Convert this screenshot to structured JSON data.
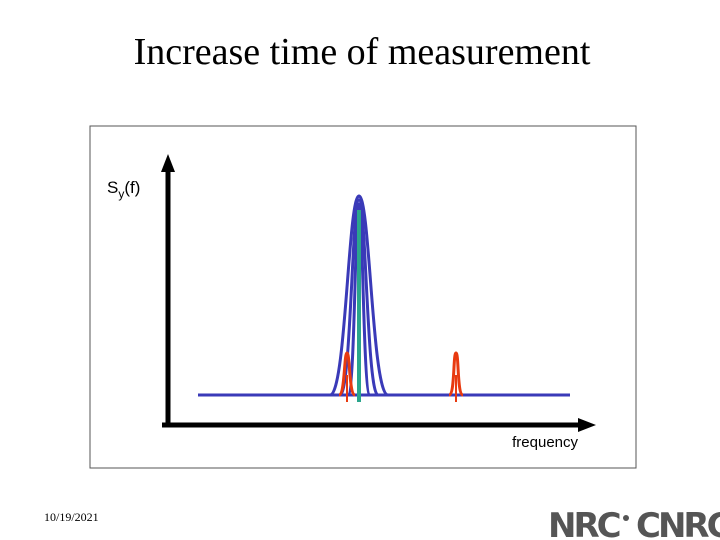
{
  "title": "Increase time of measurement",
  "diagram": {
    "y_label": {
      "main": "S",
      "sub": "y",
      "suffix": "(f)"
    },
    "x_label": "frequency"
  },
  "footer": {
    "date": "10/19/2021",
    "logo_left": "NRC",
    "logo_right": "CNRC"
  }
}
